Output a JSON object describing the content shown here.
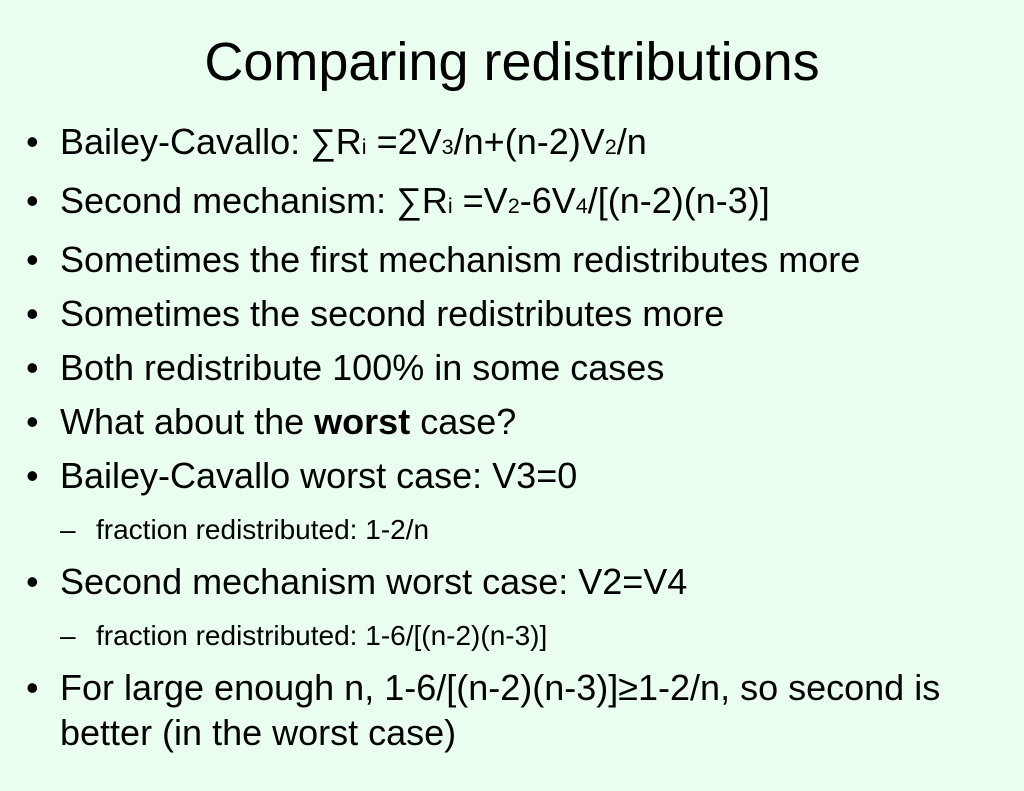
{
  "title": "Comparing redistributions",
  "bullets": [
    {
      "level": 1,
      "runs": [
        {
          "text": "Bailey-Cavallo: ∑R"
        },
        {
          "text": "i",
          "sub": true
        },
        {
          "text": " =2V"
        },
        {
          "text": "3",
          "sub": true
        },
        {
          "text": "/n+(n-2)V"
        },
        {
          "text": "2",
          "sub": true
        },
        {
          "text": "/n"
        }
      ]
    },
    {
      "level": 1,
      "runs": [
        {
          "text": "Second mechanism: ∑R"
        },
        {
          "text": "i",
          "sub": true
        },
        {
          "text": " =V"
        },
        {
          "text": "2",
          "sub": true
        },
        {
          "text": "-6V"
        },
        {
          "text": "4",
          "sub": true
        },
        {
          "text": "/[(n-2)(n-3)]"
        }
      ]
    },
    {
      "level": 1,
      "runs": [
        {
          "text": "Sometimes the first mechanism redistributes more"
        }
      ]
    },
    {
      "level": 1,
      "runs": [
        {
          "text": "Sometimes the second redistributes more"
        }
      ]
    },
    {
      "level": 1,
      "runs": [
        {
          "text": "Both redistribute 100% in some cases"
        }
      ]
    },
    {
      "level": 1,
      "runs": [
        {
          "text": "What about the "
        },
        {
          "text": "worst",
          "bold": true
        },
        {
          "text": " case?"
        }
      ]
    },
    {
      "level": 1,
      "runs": [
        {
          "text": "Bailey-Cavallo worst case: V3=0"
        }
      ]
    },
    {
      "level": 2,
      "runs": [
        {
          "text": "fraction redistributed: 1-2/n"
        }
      ]
    },
    {
      "level": 1,
      "runs": [
        {
          "text": "Second mechanism worst case: V2=V4"
        }
      ]
    },
    {
      "level": 2,
      "runs": [
        {
          "text": "fraction redistributed: 1-6/[(n-2)(n-3)]"
        }
      ]
    },
    {
      "level": 1,
      "runs": [
        {
          "text": "For large enough n, 1-6/[(n-2)(n-3)]≥1-2/n, so second is better (in the worst case)"
        }
      ]
    }
  ]
}
